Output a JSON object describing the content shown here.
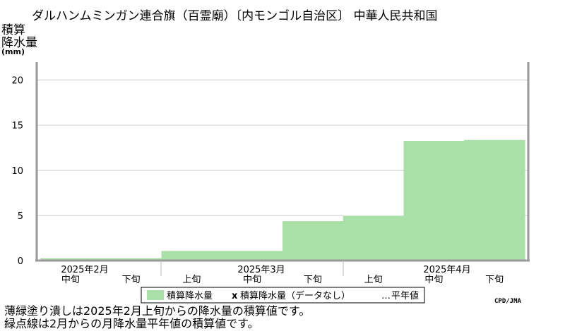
{
  "chart_data": {
    "type": "bar",
    "title": "ダルハンムミンガン連合旗（百霊廟）〔内モンゴル自治区〕 中華人民共和国",
    "ylabel_lines": [
      "積算",
      "降水量"
    ],
    "yunit": "(mm)",
    "ylim": [
      0,
      22
    ],
    "yticks": [
      0,
      5,
      10,
      15,
      20
    ],
    "grid": true,
    "periods": [
      "中旬",
      "下旬",
      "上旬",
      "中旬",
      "下旬",
      "上旬",
      "中旬",
      "下旬"
    ],
    "months": [
      "2025年2月",
      "2025年3月",
      "2025年4月"
    ],
    "series": [
      {
        "name": "積算降水量",
        "color": "#a8e0a8",
        "values": [
          0.3,
          0.3,
          1.1,
          1.1,
          4.4,
          5.0,
          13.3,
          13.4
        ]
      }
    ],
    "legend": {
      "position": "bottom",
      "items": [
        {
          "symbol": "",
          "label": "積算降水量"
        },
        {
          "symbol": "x",
          "label": "積算降水量（データなし）"
        },
        {
          "symbol": "…",
          "label": "平年値"
        }
      ]
    }
  },
  "credit": "CPD/JMA",
  "notes": [
    "薄緑塗り潰しは2025年2月上旬からの降水量の積算値です。",
    "緑点線は2月からの月降水量平年値の積算値です。"
  ]
}
